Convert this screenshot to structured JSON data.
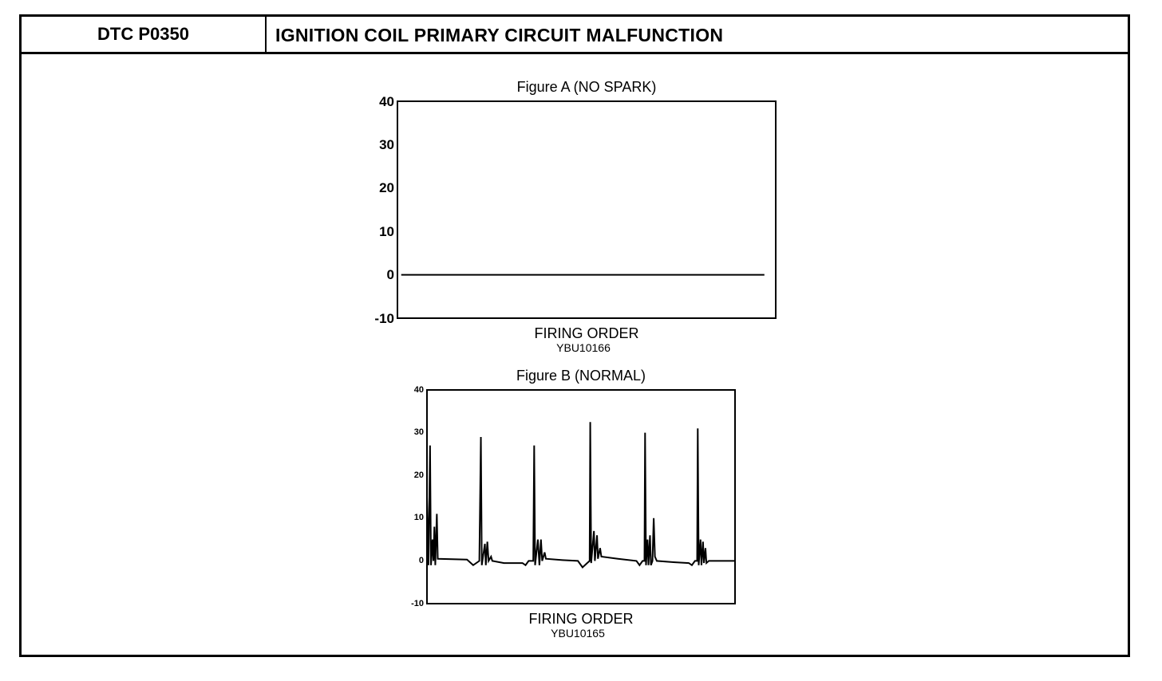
{
  "header": {
    "code": "DTC P0350",
    "title": "IGNITION COIL PRIMARY CIRCUIT MALFUNCTION"
  },
  "chart_data": [
    {
      "type": "line",
      "title": "Figure A (NO SPARK)",
      "xlabel": "FIRING ORDER",
      "caption": "YBU10166",
      "ylim": [
        -10,
        40
      ],
      "yticks": [
        "40",
        "30",
        "20",
        "10",
        "0",
        "-10"
      ],
      "xlim": [
        0,
        100
      ],
      "series": [
        {
          "name": "primary",
          "points": [
            [
              1,
              0
            ],
            [
              97,
              0
            ]
          ]
        }
      ]
    },
    {
      "type": "line",
      "title": "Figure B (NORMAL)",
      "xlabel": "FIRING ORDER",
      "caption": "YBU10165",
      "ylim": [
        -10,
        40
      ],
      "yticks": [
        "40",
        "30",
        "20",
        "10",
        "0",
        "-10"
      ],
      "xlim": [
        0,
        100
      ],
      "series": [
        {
          "name": "primary",
          "points": [
            [
              0,
              15
            ],
            [
              0.5,
              -1
            ],
            [
              1,
              27
            ],
            [
              1.3,
              -1
            ],
            [
              1.8,
              5
            ],
            [
              2.1,
              0
            ],
            [
              2.4,
              8
            ],
            [
              2.7,
              -1
            ],
            [
              3.2,
              11
            ],
            [
              3.5,
              0.5
            ],
            [
              13,
              0.3
            ],
            [
              15,
              -1
            ],
            [
              17,
              0
            ],
            [
              17.5,
              29
            ],
            [
              17.8,
              -1
            ],
            [
              18.8,
              4
            ],
            [
              19.1,
              -1
            ],
            [
              19.6,
              4.5
            ],
            [
              20,
              0
            ],
            [
              20.8,
              1
            ],
            [
              21.2,
              0
            ],
            [
              25,
              -0.5
            ],
            [
              31,
              -0.5
            ],
            [
              32,
              -1
            ],
            [
              33,
              0
            ],
            [
              34.5,
              0
            ],
            [
              34.8,
              27
            ],
            [
              35.1,
              -1
            ],
            [
              36,
              5
            ],
            [
              36.5,
              -1
            ],
            [
              37,
              5
            ],
            [
              37.4,
              0
            ],
            [
              38.2,
              2
            ],
            [
              38.6,
              0.5
            ],
            [
              44,
              0.2
            ],
            [
              49,
              0
            ],
            [
              50.5,
              -1.5
            ],
            [
              52,
              -0.5
            ],
            [
              52.8,
              0
            ],
            [
              53,
              32.5
            ],
            [
              53.3,
              -0.5
            ],
            [
              54.2,
              7
            ],
            [
              54.5,
              0
            ],
            [
              55.2,
              6
            ],
            [
              55.5,
              0.5
            ],
            [
              56.2,
              3
            ],
            [
              56.6,
              1
            ],
            [
              62,
              0.5
            ],
            [
              68,
              0
            ],
            [
              69,
              -1
            ],
            [
              70,
              0
            ],
            [
              70.6,
              0
            ],
            [
              70.8,
              30
            ],
            [
              71.1,
              -1
            ],
            [
              71.6,
              5
            ],
            [
              71.9,
              -1
            ],
            [
              72.4,
              6
            ],
            [
              72.7,
              -1
            ],
            [
              73.2,
              0
            ],
            [
              73.6,
              10
            ],
            [
              74,
              1
            ],
            [
              74.6,
              0
            ],
            [
              80,
              -0.3
            ],
            [
              85,
              -0.5
            ],
            [
              86,
              -1
            ],
            [
              87,
              0
            ],
            [
              87.7,
              0
            ],
            [
              87.9,
              31
            ],
            [
              88.2,
              -1
            ],
            [
              88.8,
              5
            ],
            [
              89.1,
              -1
            ],
            [
              89.6,
              4.5
            ],
            [
              89.9,
              -0.5
            ],
            [
              90.4,
              3
            ],
            [
              90.7,
              -0.5
            ],
            [
              91.5,
              0
            ],
            [
              100,
              0
            ]
          ]
        }
      ]
    }
  ]
}
